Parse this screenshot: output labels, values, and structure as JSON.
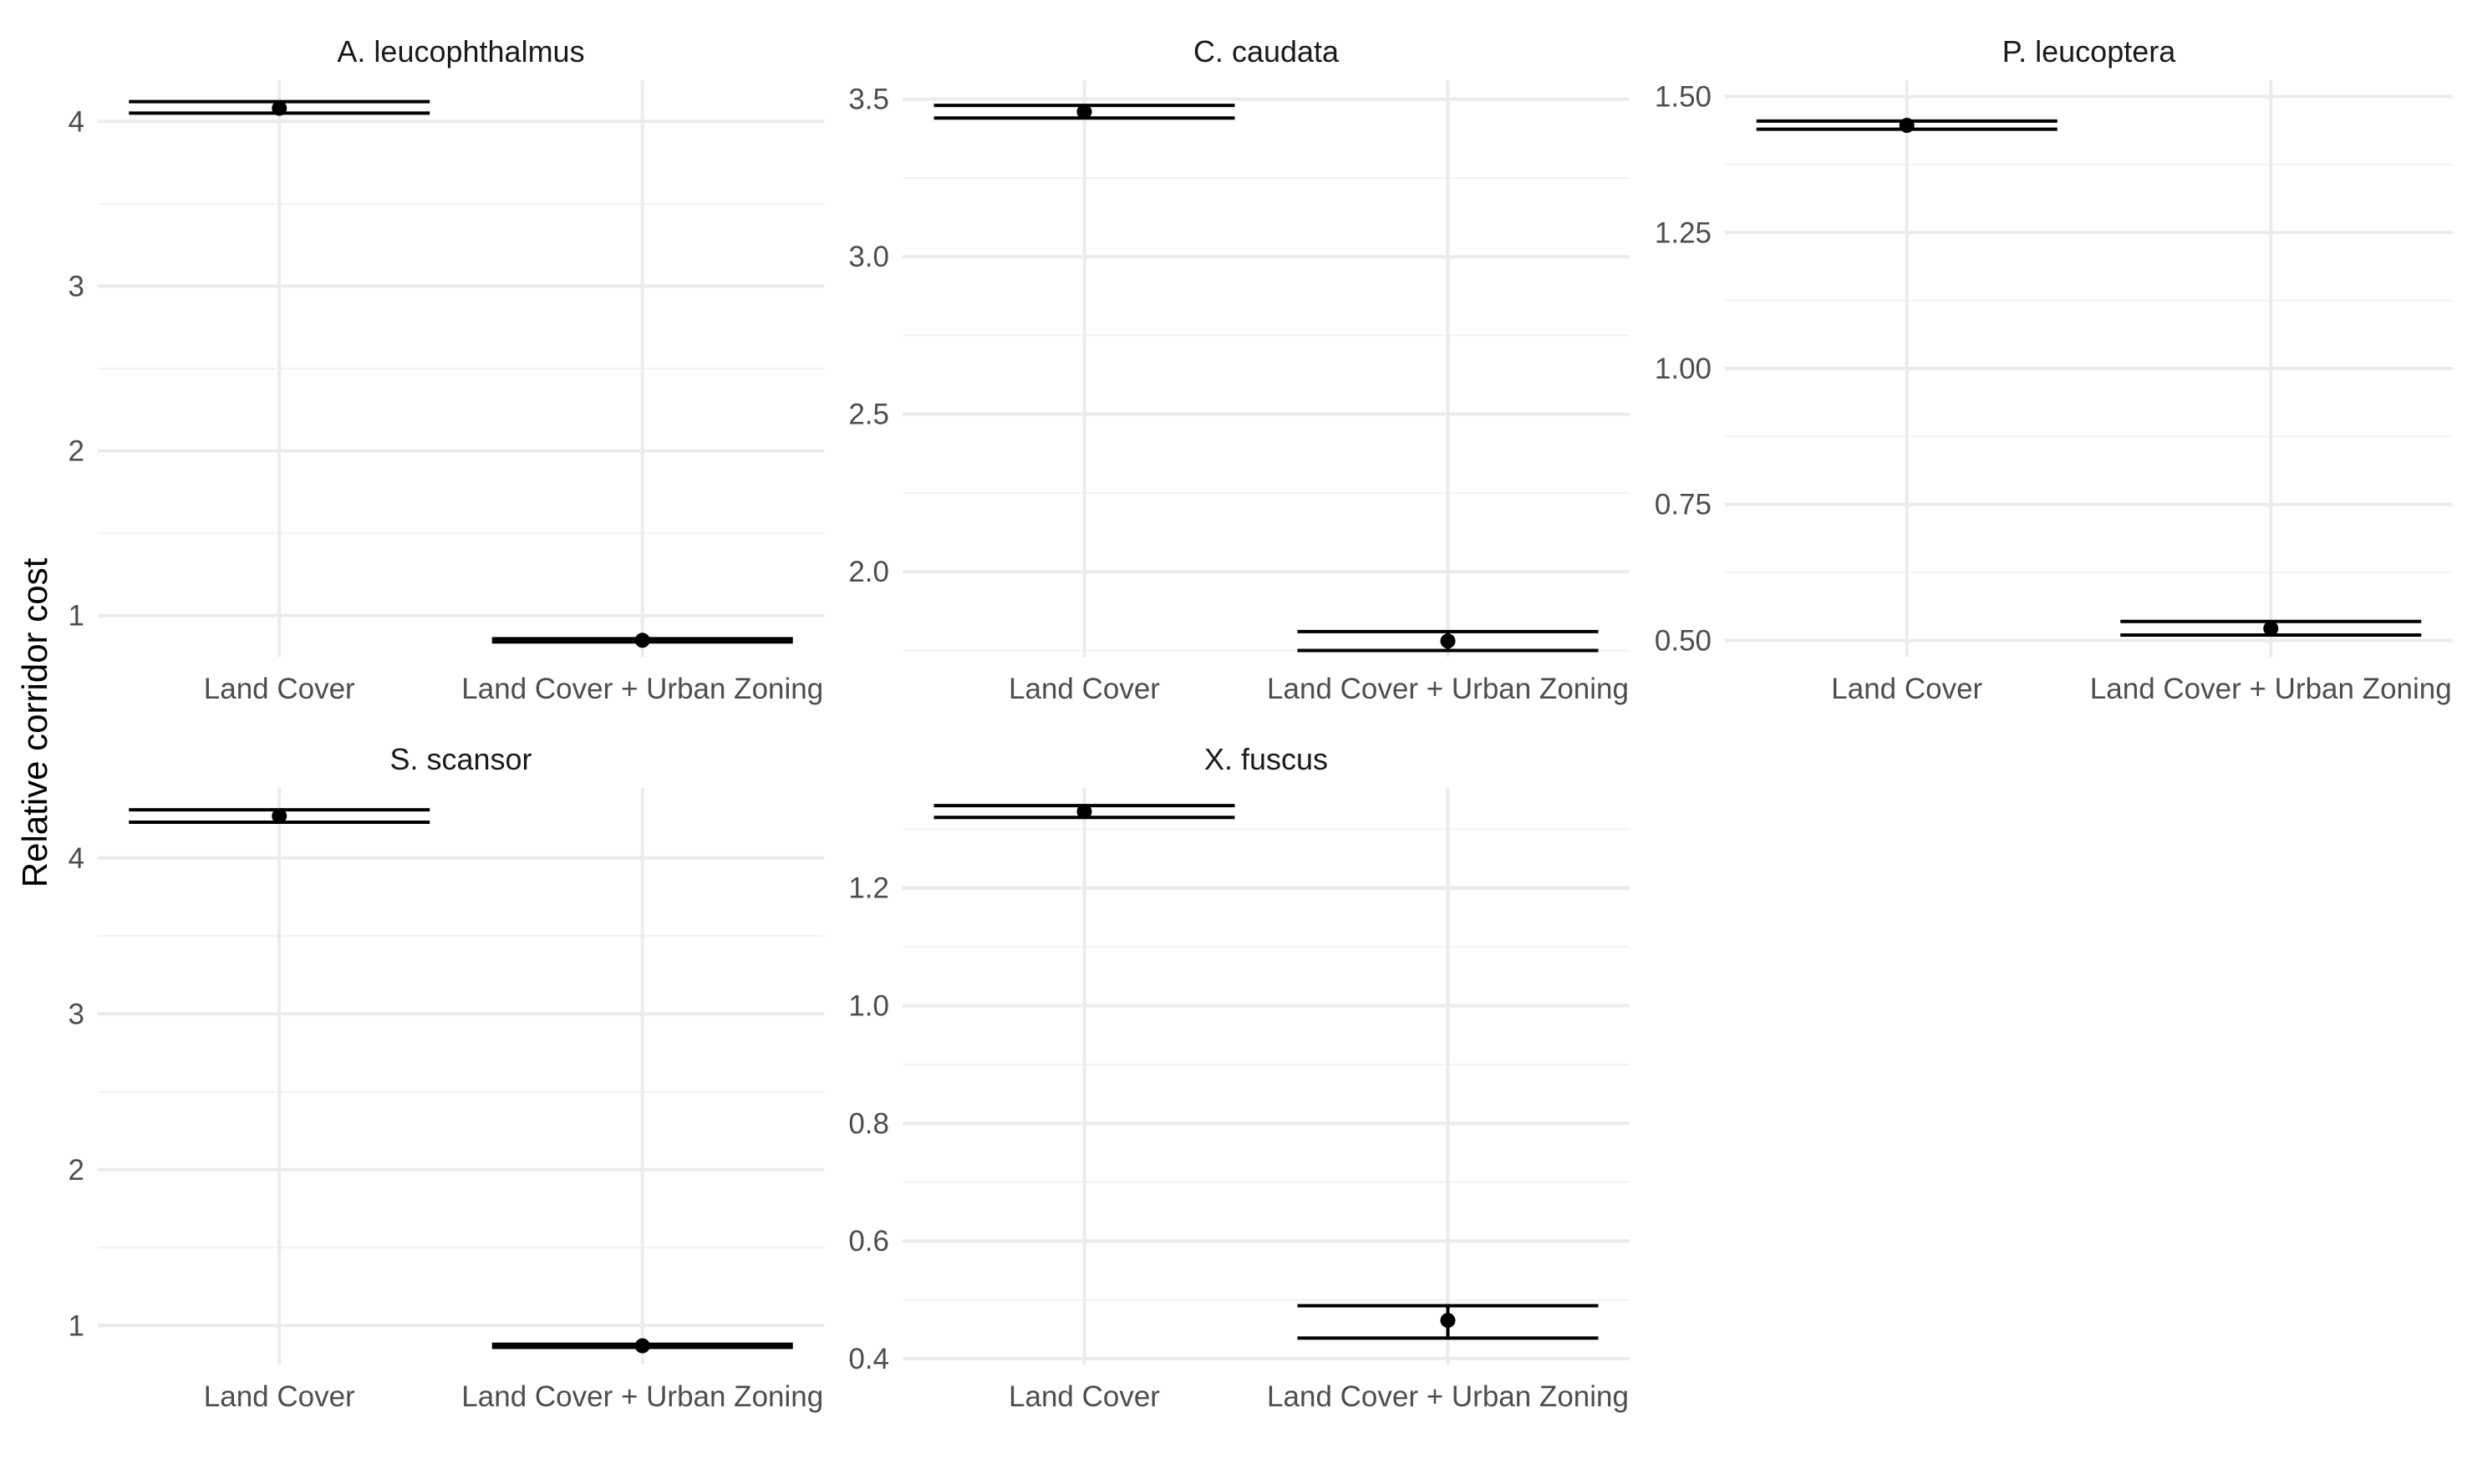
{
  "chart_data": {
    "type": "scatter",
    "ylabel": "Relative corridor cost",
    "xlabel": "",
    "categories": [
      "Land Cover",
      "Land Cover + Urban Zoning"
    ],
    "panels": [
      {
        "title": "A. leucophthalmus",
        "ylim": [
          0.75,
          4.25
        ],
        "yticks": [
          1,
          2,
          3,
          4
        ],
        "ytick_labels": [
          "1",
          "2",
          "3",
          "4"
        ],
        "points": [
          {
            "category": "Land Cover",
            "value": 4.08,
            "lower": 4.05,
            "upper": 4.12
          },
          {
            "category": "Land Cover + Urban Zoning",
            "value": 0.85,
            "lower": 0.84,
            "upper": 0.86
          }
        ]
      },
      {
        "title": "C. caudata",
        "ylim": [
          1.73,
          3.56
        ],
        "yticks": [
          2.0,
          2.5,
          3.0,
          3.5
        ],
        "ytick_labels": [
          "2.0",
          "2.5",
          "3.0",
          "3.5"
        ],
        "points": [
          {
            "category": "Land Cover",
            "value": 3.46,
            "lower": 3.44,
            "upper": 3.48
          },
          {
            "category": "Land Cover + Urban Zoning",
            "value": 1.78,
            "lower": 1.75,
            "upper": 1.81
          }
        ]
      },
      {
        "title": "P. leucoptera",
        "ylim": [
          0.47,
          1.53
        ],
        "yticks": [
          0.5,
          0.75,
          1.0,
          1.25,
          1.5
        ],
        "ytick_labels": [
          "0.50",
          "0.75",
          "1.00",
          "1.25",
          "1.50"
        ],
        "points": [
          {
            "category": "Land Cover",
            "value": 1.447,
            "lower": 1.44,
            "upper": 1.455
          },
          {
            "category": "Land Cover + Urban Zoning",
            "value": 0.522,
            "lower": 0.51,
            "upper": 0.535
          }
        ]
      },
      {
        "title": "S. scansor",
        "ylim": [
          0.75,
          4.45
        ],
        "yticks": [
          1,
          2,
          3,
          4
        ],
        "ytick_labels": [
          "1",
          "2",
          "3",
          "4"
        ],
        "points": [
          {
            "category": "Land Cover",
            "value": 4.27,
            "lower": 4.23,
            "upper": 4.31
          },
          {
            "category": "Land Cover + Urban Zoning",
            "value": 0.87,
            "lower": 0.86,
            "upper": 0.88
          }
        ]
      },
      {
        "title": "X. fuscus",
        "ylim": [
          0.39,
          1.37
        ],
        "yticks": [
          0.4,
          0.6,
          0.8,
          1.0,
          1.2
        ],
        "ytick_labels": [
          "0.4",
          "0.6",
          "0.8",
          "1.0",
          "1.2"
        ],
        "points": [
          {
            "category": "Land Cover",
            "value": 1.33,
            "lower": 1.32,
            "upper": 1.34
          },
          {
            "category": "Land Cover + Urban Zoning",
            "value": 0.465,
            "lower": 0.435,
            "upper": 0.49
          }
        ]
      }
    ]
  }
}
